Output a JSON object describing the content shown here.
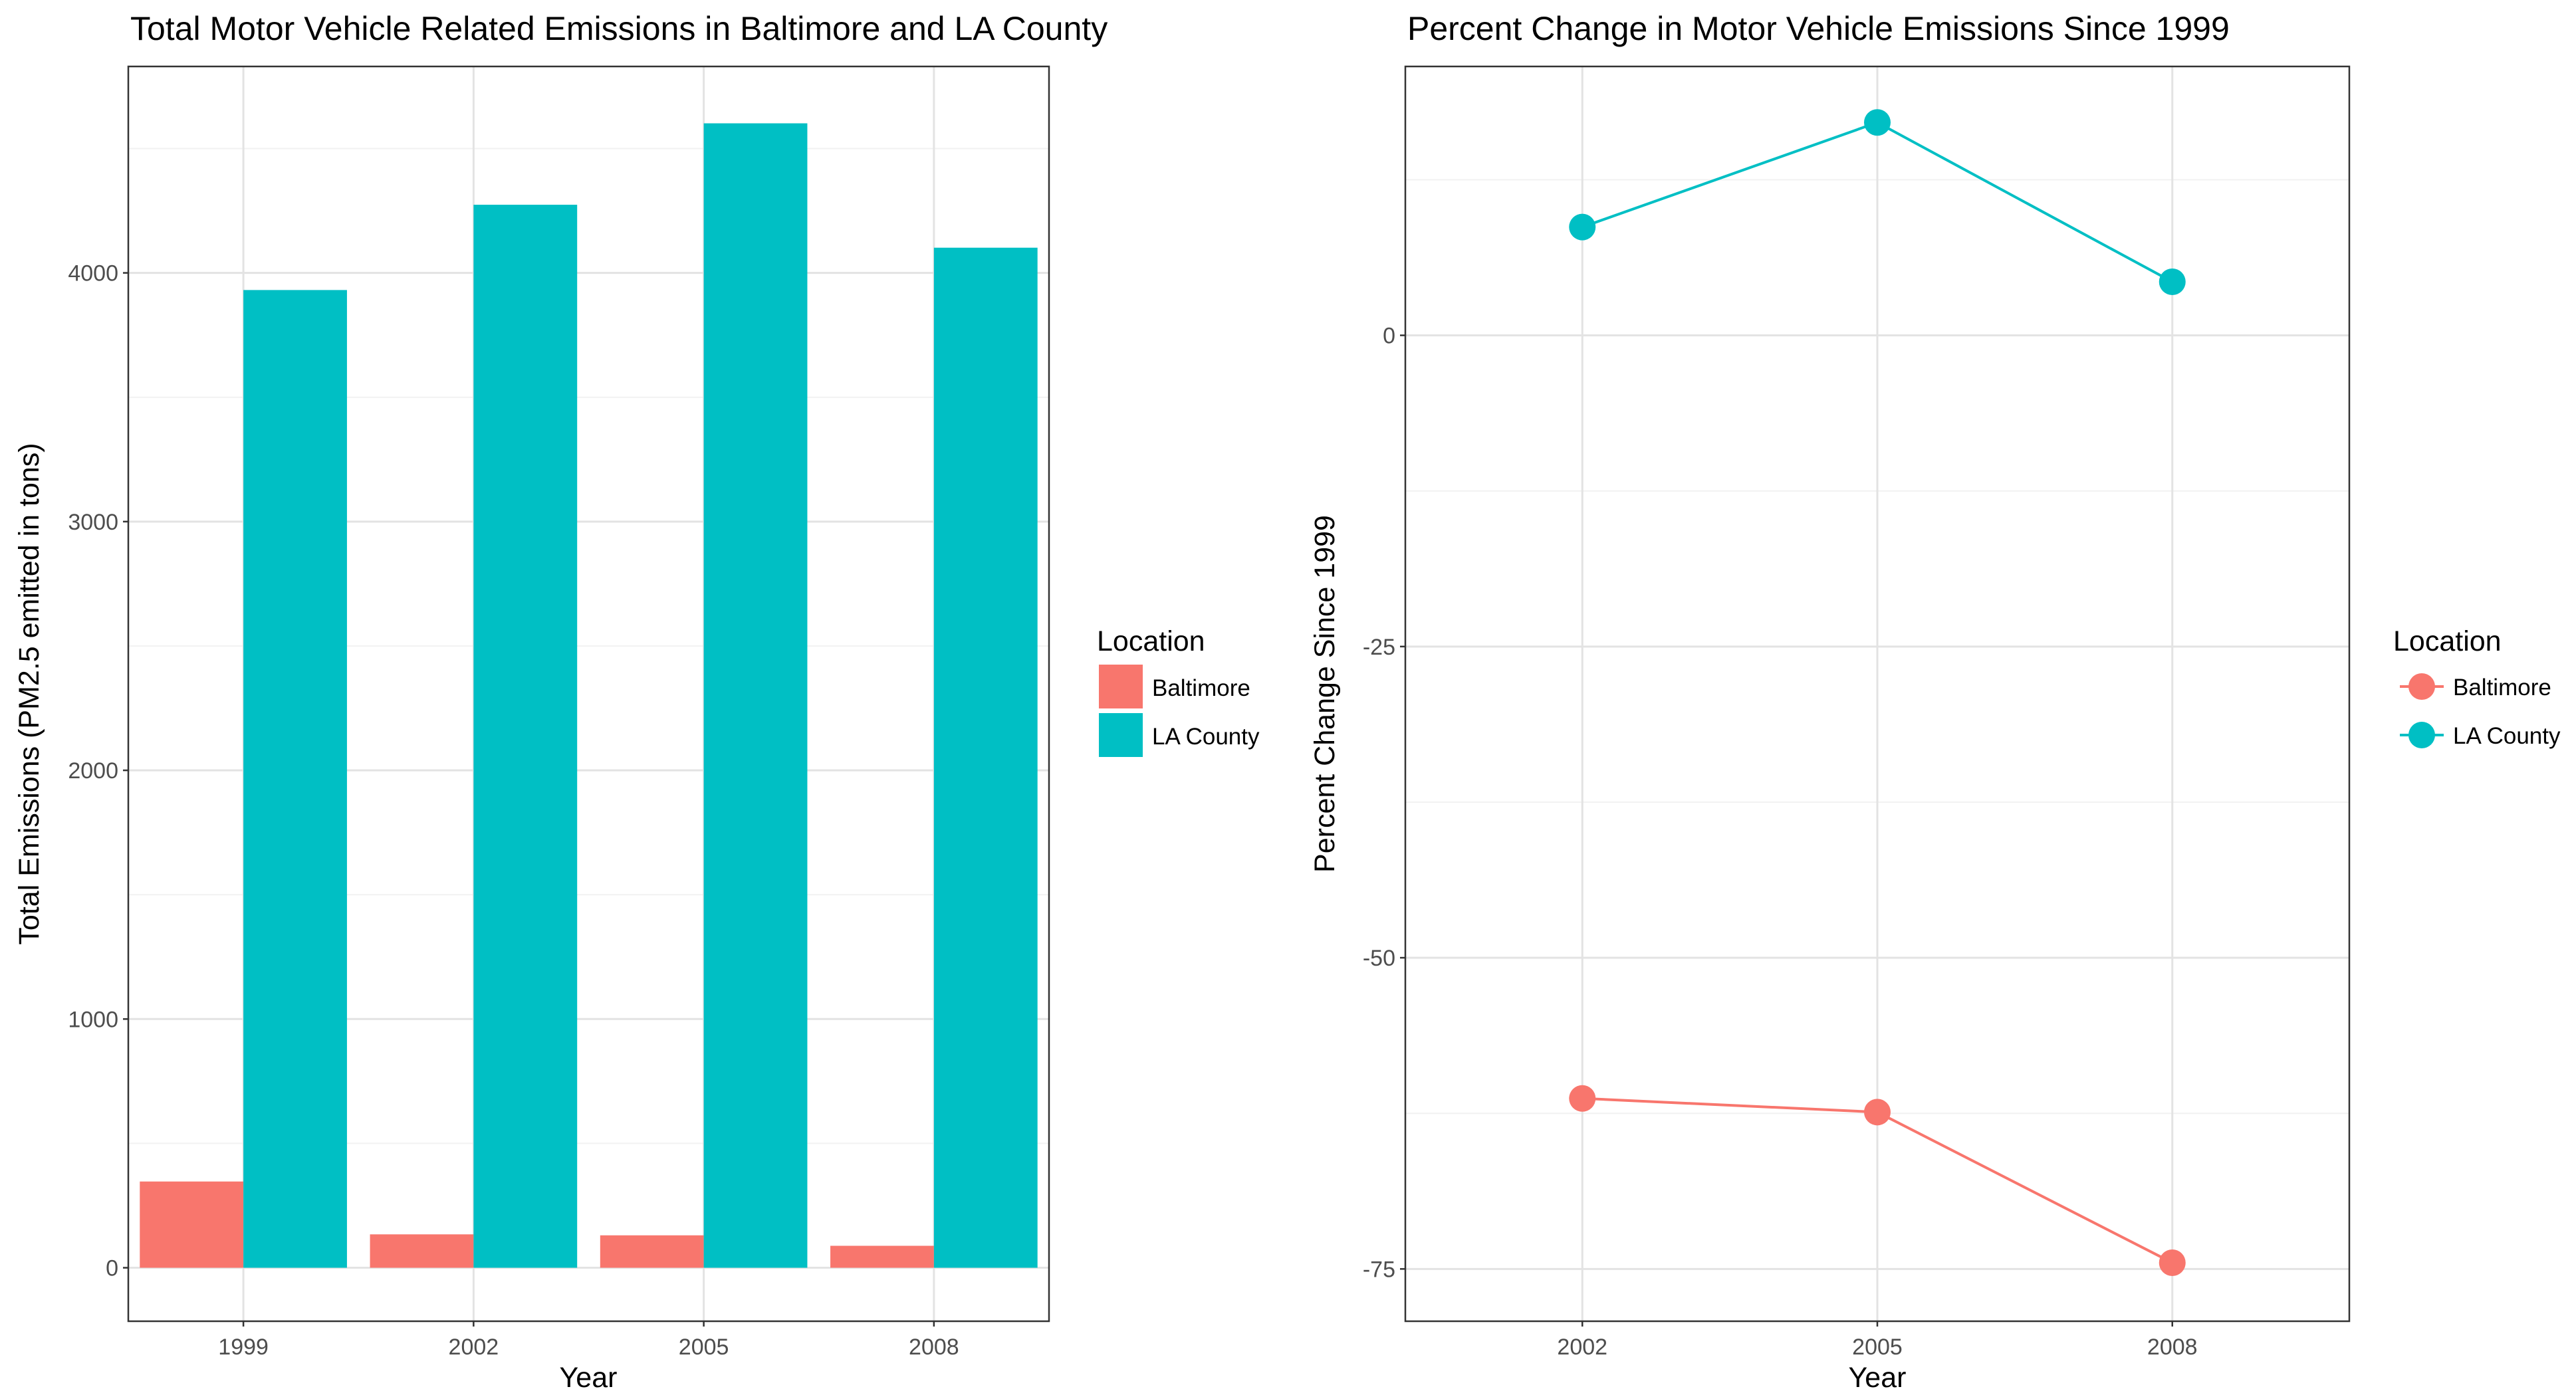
{
  "legend": {
    "title": "Location",
    "items": [
      {
        "label": "Baltimore",
        "color": "#F8766D"
      },
      {
        "label": "LA County",
        "color": "#00BFC4"
      }
    ]
  },
  "chart_data": [
    {
      "type": "bar",
      "title": "Total Motor Vehicle Related Emissions in Baltimore and LA County",
      "xlabel": "Year",
      "ylabel": "Total Emissions (PM2.5 emitted in tons)",
      "categories": [
        "1999",
        "2002",
        "2005",
        "2008"
      ],
      "series": [
        {
          "name": "Baltimore",
          "color": "#F8766D",
          "values": [
            346.8,
            134.3,
            130.4,
            88.3
          ]
        },
        {
          "name": "LA County",
          "color": "#00BFC4",
          "values": [
            3931.1,
            4274.0,
            4601.4,
            4101.3
          ]
        }
      ],
      "ylim": [
        -215,
        4830
      ],
      "yticks": [
        0,
        1000,
        2000,
        3000,
        4000
      ],
      "ytick_labels": [
        "0",
        "1000",
        "2000",
        "3000",
        "4000"
      ],
      "grid": true,
      "legend_position": "right"
    },
    {
      "type": "line",
      "title": "Percent Change in Motor Vehicle Emissions Since 1999",
      "xlabel": "Year",
      "ylabel": "Percent Change Since 1999",
      "x": [
        "2002",
        "2005",
        "2008"
      ],
      "series": [
        {
          "name": "Baltimore",
          "color": "#F8766D",
          "values": [
            -61.3,
            -62.4,
            -74.5
          ]
        },
        {
          "name": "LA County",
          "color": "#00BFC4",
          "values": [
            8.7,
            17.1,
            4.3
          ]
        }
      ],
      "ylim": [
        -79.2,
        21.6
      ],
      "yticks": [
        -75,
        -50,
        -25,
        0
      ],
      "ytick_labels": [
        "-75",
        "-50",
        "-25",
        "0"
      ],
      "grid": true,
      "legend_position": "right"
    }
  ]
}
